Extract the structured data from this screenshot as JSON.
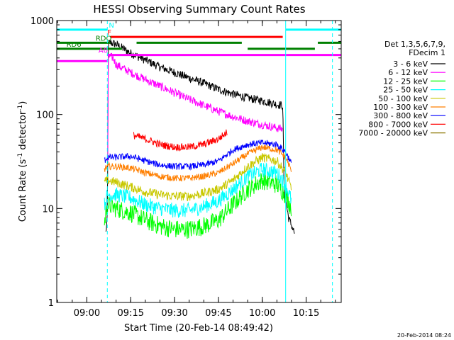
{
  "chart_data": {
    "type": "line",
    "title": "HESSI Observing Summary Count Rates",
    "xlabel": "Start Time (20-Feb-14 08:49:42)",
    "ylabel_parts": [
      "Count Rate (s",
      "-1",
      " detector",
      "-1",
      ")"
    ],
    "yscale": "log",
    "ylim": [
      1,
      1000
    ],
    "xlim": [
      "08:49:42",
      "10:27:00"
    ],
    "yticks": [
      {
        "value": 1,
        "label": "1"
      },
      {
        "value": 10,
        "label": "10"
      },
      {
        "value": 100,
        "label": "100"
      },
      {
        "value": 1000,
        "label": "1000"
      }
    ],
    "xticks": [
      {
        "value": "09:00",
        "label": "09:00"
      },
      {
        "value": "09:15",
        "label": "09:15"
      },
      {
        "value": "09:30",
        "label": "09:30"
      },
      {
        "value": "09:45",
        "label": "09:45"
      },
      {
        "value": "10:00",
        "label": "10:00"
      },
      {
        "value": "10:15",
        "label": "10:15"
      }
    ],
    "legend_header": [
      "Det 1,3,5,6,7,9,",
      "FDecim 1"
    ],
    "legend_placement": "right",
    "series": [
      {
        "name": "3 - 6 keV",
        "color": "#000000",
        "noise": 0.045,
        "points": [
          [
            "09:06:30",
            5.5
          ],
          [
            "09:07:00",
            8
          ],
          [
            "09:07:10",
            40
          ],
          [
            "09:07:20",
            560
          ],
          [
            "09:08:00",
            580
          ],
          [
            "09:10:00",
            560
          ],
          [
            "09:15:00",
            450
          ],
          [
            "09:20:00",
            380
          ],
          [
            "09:25:00",
            320
          ],
          [
            "09:30:00",
            280
          ],
          [
            "09:35:00",
            245
          ],
          [
            "09:40:00",
            215
          ],
          [
            "09:45:00",
            185
          ],
          [
            "09:50:00",
            165
          ],
          [
            "09:55:00",
            150
          ],
          [
            "10:00:00",
            140
          ],
          [
            "10:05:00",
            128
          ],
          [
            "10:07:00",
            125
          ],
          [
            "10:07:30",
            15
          ],
          [
            "10:09:00",
            8
          ],
          [
            "10:11:00",
            5.5
          ]
        ]
      },
      {
        "name": "6 - 12 keV",
        "color": "#ff00ff",
        "noise": 0.045,
        "points": [
          [
            "09:07:10",
            30
          ],
          [
            "09:07:20",
            420
          ],
          [
            "09:09:00",
            400
          ],
          [
            "09:10:00",
            340
          ],
          [
            "09:15:00",
            280
          ],
          [
            "09:20:00",
            235
          ],
          [
            "09:25:00",
            200
          ],
          [
            "09:30:00",
            170
          ],
          [
            "09:35:00",
            145
          ],
          [
            "09:40:00",
            125
          ],
          [
            "09:45:00",
            108
          ],
          [
            "09:50:00",
            95
          ],
          [
            "09:55:00",
            85
          ],
          [
            "10:00:00",
            78
          ],
          [
            "10:05:00",
            72
          ],
          [
            "10:07:00",
            70
          ]
        ]
      },
      {
        "name": "12 - 25 keV",
        "color": "#00ff00",
        "noise": 0.1,
        "points": [
          [
            "09:06:00",
            7
          ],
          [
            "09:07:00",
            11
          ],
          [
            "09:10:00",
            10
          ],
          [
            "09:15:00",
            9
          ],
          [
            "09:20:00",
            7.5
          ],
          [
            "09:25:00",
            6.5
          ],
          [
            "09:30:00",
            6
          ],
          [
            "09:35:00",
            6
          ],
          [
            "09:40:00",
            6.5
          ],
          [
            "09:45:00",
            7.5
          ],
          [
            "09:50:00",
            11
          ],
          [
            "09:55:00",
            16
          ],
          [
            "10:00:00",
            20
          ],
          [
            "10:05:00",
            18
          ],
          [
            "10:08:00",
            14
          ],
          [
            "10:10:00",
            10
          ]
        ]
      },
      {
        "name": "25 - 50 keV",
        "color": "#00ffff",
        "noise": 0.08,
        "points": [
          [
            "09:06:00",
            11
          ],
          [
            "09:07:00",
            14
          ],
          [
            "09:10:00",
            14
          ],
          [
            "09:15:00",
            13
          ],
          [
            "09:20:00",
            11
          ],
          [
            "09:25:00",
            10
          ],
          [
            "09:30:00",
            9.5
          ],
          [
            "09:35:00",
            9.5
          ],
          [
            "09:40:00",
            10.5
          ],
          [
            "09:45:00",
            12
          ],
          [
            "09:50:00",
            16
          ],
          [
            "09:55:00",
            22
          ],
          [
            "10:00:00",
            26
          ],
          [
            "10:05:00",
            24
          ],
          [
            "10:08:00",
            18
          ],
          [
            "10:10:00",
            12
          ]
        ]
      },
      {
        "name": "50 - 100 keV",
        "color": "#c8c800",
        "noise": 0.05,
        "points": [
          [
            "09:06:00",
            19
          ],
          [
            "09:07:00",
            20
          ],
          [
            "09:10:00",
            19
          ],
          [
            "09:15:00",
            17
          ],
          [
            "09:20:00",
            15
          ],
          [
            "09:25:00",
            14
          ],
          [
            "09:30:00",
            13.5
          ],
          [
            "09:35:00",
            13.5
          ],
          [
            "09:40:00",
            14.5
          ],
          [
            "09:45:00",
            16
          ],
          [
            "09:50:00",
            20
          ],
          [
            "09:55:00",
            28
          ],
          [
            "10:00:00",
            35
          ],
          [
            "10:05:00",
            32
          ],
          [
            "10:08:00",
            24
          ],
          [
            "10:10:00",
            16
          ]
        ]
      },
      {
        "name": "100 - 300 keV",
        "color": "#ff7f00",
        "noise": 0.035,
        "points": [
          [
            "09:06:00",
            26
          ],
          [
            "09:07:00",
            28
          ],
          [
            "09:10:00",
            28
          ],
          [
            "09:15:00",
            27
          ],
          [
            "09:20:00",
            24
          ],
          [
            "09:25:00",
            22
          ],
          [
            "09:30:00",
            21
          ],
          [
            "09:35:00",
            21
          ],
          [
            "09:40:00",
            22
          ],
          [
            "09:45:00",
            24
          ],
          [
            "09:50:00",
            30
          ],
          [
            "09:55:00",
            38
          ],
          [
            "10:00:00",
            45
          ],
          [
            "10:05:00",
            42
          ],
          [
            "10:08:00",
            35
          ],
          [
            "10:10:00",
            25
          ]
        ]
      },
      {
        "name": "300 - 800 keV",
        "color": "#0000ff",
        "noise": 0.035,
        "points": [
          [
            "09:06:00",
            32
          ],
          [
            "09:07:00",
            35
          ],
          [
            "09:10:00",
            35
          ],
          [
            "09:15:00",
            36
          ],
          [
            "09:20:00",
            32
          ],
          [
            "09:25:00",
            29
          ],
          [
            "09:30:00",
            28
          ],
          [
            "09:35:00",
            28
          ],
          [
            "09:40:00",
            29
          ],
          [
            "09:45:00",
            32
          ],
          [
            "09:50:00",
            42
          ],
          [
            "09:55:00",
            48
          ],
          [
            "10:00:00",
            50
          ],
          [
            "10:05:00",
            48
          ],
          [
            "10:08:00",
            40
          ],
          [
            "10:10:00",
            30
          ]
        ]
      },
      {
        "name": "800 - 7000 keV",
        "color": "#ff0000",
        "noise": 0.04,
        "points": [
          [
            "09:16:00",
            60
          ],
          [
            "09:20:00",
            55
          ],
          [
            "09:25:00",
            48
          ],
          [
            "09:30:00",
            45
          ],
          [
            "09:35:00",
            45
          ],
          [
            "09:40:00",
            48
          ],
          [
            "09:45:00",
            55
          ],
          [
            "09:48:00",
            65
          ]
        ]
      },
      {
        "name": "7000 - 20000 keV",
        "color": "#8b7500",
        "noise": 0,
        "points": []
      }
    ],
    "flag_bars": [
      {
        "label": "N",
        "color": "#00ffff",
        "value": 800,
        "segments": [
          [
            "08:49:42",
            "09:07:00"
          ],
          [
            "10:08:00",
            "10:27:00"
          ]
        ],
        "label_at": "09:07:30"
      },
      {
        "label": "F",
        "color": "#ff0000",
        "value": 670,
        "segments": [
          [
            "09:08:00",
            "10:07:00"
          ]
        ],
        "label_at": "09:07:00"
      },
      {
        "label": "RDO",
        "color": "#008000",
        "value": 580,
        "segments": [
          [
            "08:49:42",
            "09:08:00"
          ],
          [
            "09:17:00",
            "09:53:00"
          ],
          [
            "10:19:00",
            "10:27:00"
          ]
        ],
        "label_at": "09:03:00"
      },
      {
        "label": "RD6",
        "color": "#008000",
        "value": 500,
        "segments": [
          [
            "08:49:42",
            "09:12:00"
          ],
          [
            "09:55:00",
            "10:18:00"
          ]
        ],
        "label_at": "08:53:00"
      },
      {
        "label": "A0",
        "color": "#ff00ff",
        "value": 430,
        "segments": [
          [
            "09:07:00",
            "10:27:00"
          ]
        ],
        "label_at": "09:04:00"
      },
      {
        "label": "",
        "color": "#ff00ff",
        "value": 370,
        "segments": [
          [
            "08:49:42",
            "09:07:00"
          ]
        ],
        "label_at": ""
      }
    ],
    "vlines": [
      {
        "time": "08:49:42",
        "color": "#00ffff",
        "dashed": false
      },
      {
        "time": "09:07:00",
        "color": "#00ffff",
        "dashed": true
      },
      {
        "time": "10:08:00",
        "color": "#00ffff",
        "dashed": false
      },
      {
        "time": "10:24:00",
        "color": "#00ffff",
        "dashed": true
      }
    ],
    "timestamp": "20-Feb-2014 08:24"
  }
}
